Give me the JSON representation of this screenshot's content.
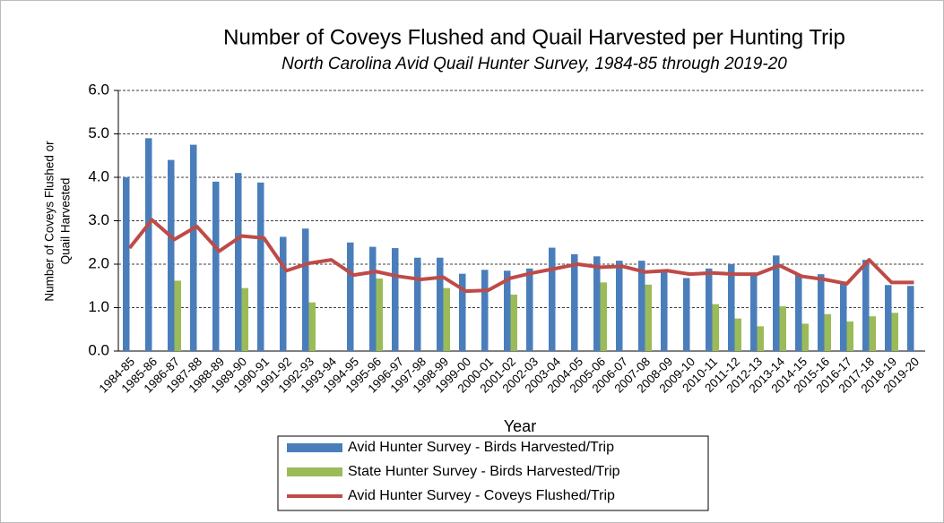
{
  "chart_data": {
    "type": "bar_line",
    "title": "Number of Coveys Flushed and Quail Harvested per Hunting Trip",
    "subtitle": "North Carolina Avid Quail Hunter Survey, 1984-85 through 2019-20",
    "x_label": "Year",
    "y_label_lines": [
      "Number of Coveys Flushed or",
      "Quail Harvested"
    ],
    "categories": [
      "1984-85",
      "1985-86",
      "1986-87",
      "1987-88",
      "1988-89",
      "1989-90",
      "1990-91",
      "1991-92",
      "1992-93",
      "1993-94",
      "1994-95",
      "1995-96",
      "1996-97",
      "1997-98",
      "1998-99",
      "1999-00",
      "2000-01",
      "2001-02",
      "2002-03",
      "2003-04",
      "2004-05",
      "2005-06",
      "2006-07",
      "2007-08",
      "2008-09",
      "2009-10",
      "2010-11",
      "2011-12",
      "2012-13",
      "2013-14",
      "2014-15",
      "2015-16",
      "2016-17",
      "2017-18",
      "2018-19",
      "2019-20"
    ],
    "series": [
      {
        "name": "Avid Hunter Survey - Birds Harvested/Trip",
        "kind": "bar",
        "color": "#4a7ebb",
        "values": [
          4.0,
          4.9,
          4.4,
          4.75,
          3.9,
          4.1,
          3.88,
          2.63,
          2.82,
          null,
          2.5,
          2.4,
          2.37,
          2.15,
          2.15,
          1.78,
          1.87,
          1.85,
          1.9,
          2.38,
          2.23,
          2.18,
          2.08,
          2.08,
          1.87,
          1.68,
          1.9,
          2.0,
          1.8,
          2.2,
          1.75,
          1.77,
          1.6,
          2.1,
          1.52,
          1.5
        ]
      },
      {
        "name": "State Hunter Survey - Birds Harvested/Trip",
        "kind": "bar",
        "color": "#9bbb59",
        "values": [
          null,
          null,
          1.62,
          null,
          null,
          1.45,
          null,
          null,
          1.12,
          null,
          null,
          1.67,
          null,
          null,
          1.45,
          null,
          null,
          1.3,
          null,
          null,
          null,
          1.58,
          null,
          1.53,
          null,
          null,
          1.08,
          0.75,
          0.57,
          1.03,
          0.63,
          0.85,
          0.68,
          0.8,
          0.88,
          null
        ]
      },
      {
        "name": "Avid Hunter Survey - Coveys Flushed/Trip",
        "kind": "line",
        "color": "#be4b48",
        "values": [
          2.37,
          3.02,
          2.57,
          2.87,
          2.3,
          2.65,
          2.6,
          1.85,
          2.02,
          2.1,
          1.75,
          1.83,
          1.72,
          1.65,
          1.7,
          1.38,
          1.4,
          1.68,
          1.8,
          1.9,
          2.0,
          1.93,
          1.95,
          1.82,
          1.85,
          1.77,
          1.8,
          1.77,
          1.77,
          1.97,
          1.72,
          1.65,
          1.55,
          2.1,
          1.58,
          1.58
        ]
      }
    ],
    "ylim": [
      0,
      6
    ],
    "yticks": [
      {
        "value": 0,
        "label": "0.0"
      },
      {
        "value": 1,
        "label": "1.0"
      },
      {
        "value": 2,
        "label": "2.0"
      },
      {
        "value": 3,
        "label": "3.0"
      },
      {
        "value": 4,
        "label": "4.0"
      },
      {
        "value": 5,
        "label": "5.0"
      },
      {
        "value": 6,
        "label": "6.0"
      }
    ],
    "grid": true
  }
}
